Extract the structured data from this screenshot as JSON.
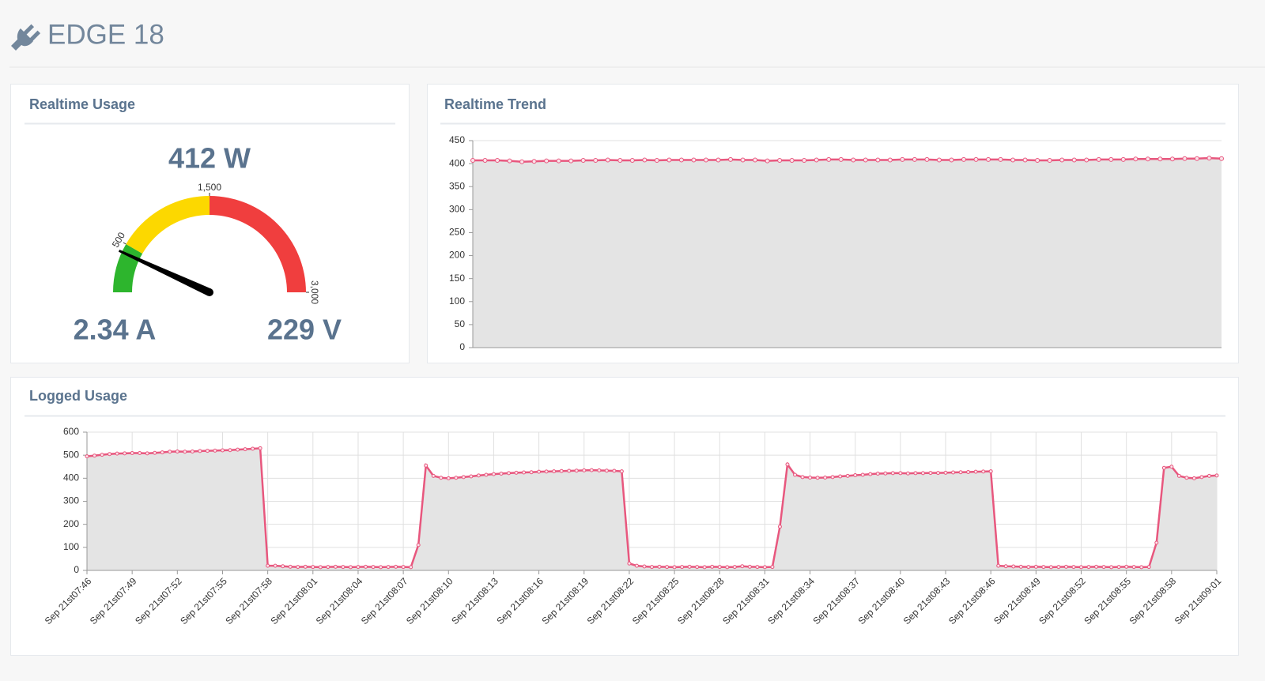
{
  "header": {
    "title": "EDGE 18"
  },
  "realtime_usage": {
    "title": "Realtime Usage",
    "gauge": {
      "type": "gauge",
      "value": 412,
      "value_label": "412 W",
      "range": [
        0,
        3000
      ],
      "ticks": [
        500,
        {
          "value": 1500,
          "label": "1,500"
        },
        {
          "value": 3000,
          "label": "3,000"
        }
      ],
      "bands": [
        {
          "to": 500,
          "color": "#2db52d"
        },
        {
          "to": 1500,
          "color": "#fcd800"
        },
        {
          "to": 3000,
          "color": "#f03e3e"
        }
      ]
    },
    "current": "2.34 A",
    "voltage": "229 V"
  },
  "realtime_trend": {
    "title": "Realtime Trend",
    "chart": {
      "type": "line",
      "color": "#e8577e",
      "fill": "#e4e4e4",
      "values": [
        407,
        407,
        407,
        406,
        404,
        405,
        406,
        406,
        406,
        407,
        407,
        408,
        407,
        407,
        408,
        407,
        408,
        408,
        408,
        408,
        408,
        409,
        408,
        408,
        406,
        407,
        407,
        407,
        408,
        409,
        409,
        408,
        408,
        408,
        408,
        409,
        409,
        409,
        408,
        408,
        409,
        409,
        409,
        409,
        408,
        408,
        407,
        407,
        408,
        408,
        408,
        409,
        409,
        409,
        410,
        410,
        410,
        410,
        411,
        411,
        412,
        411
      ],
      "ylim": [
        0,
        450
      ],
      "yticks": [
        0,
        50,
        100,
        150,
        200,
        250,
        300,
        350,
        400,
        450
      ],
      "grid": true
    }
  },
  "logged_usage": {
    "title": "Logged Usage",
    "chart": {
      "type": "line",
      "color": "#e8577e",
      "fill": "#e4e4e4",
      "x": [
        0,
        0.5,
        1,
        1.5,
        2,
        2.5,
        3,
        3.5,
        4,
        4.5,
        5,
        5.5,
        6,
        6.5,
        7,
        7.5,
        8,
        8.5,
        9,
        9.5,
        10,
        10.5,
        11,
        11.5,
        12,
        12.5,
        13,
        13.5,
        14,
        14.5,
        15,
        15.5,
        16,
        16.5,
        17,
        17.5,
        18,
        18.5,
        19,
        19.5,
        20,
        20.5,
        21,
        21.5,
        22,
        22.5,
        23,
        23.5,
        24,
        24.5,
        25,
        25.5,
        26,
        26.5,
        27,
        27.5,
        28,
        28.5,
        29,
        29.5,
        30,
        30.5,
        31,
        31.5,
        32,
        32.5,
        33,
        33.5,
        34,
        34.5,
        35,
        35.5,
        36,
        36.5,
        37,
        37.5,
        38,
        38.5,
        39,
        39.5,
        40,
        40.5,
        41,
        41.5,
        42,
        42.5,
        43,
        43.5,
        44,
        44.5,
        45,
        45.5,
        46,
        46.5,
        47,
        47.5,
        48,
        48.5,
        49,
        49.5,
        50,
        50.5,
        51,
        51.5,
        52,
        52.5,
        53,
        53.5,
        54,
        54.5,
        55,
        55.5,
        56,
        56.5,
        57,
        57.5,
        58,
        58.5,
        59,
        59.5,
        60,
        60.5,
        61,
        61.5,
        62,
        62.5,
        63,
        63.5,
        64,
        64.5,
        65,
        65.5,
        66,
        66.5,
        67,
        67.5,
        68,
        68.5,
        69,
        69.5,
        70,
        70.5,
        71,
        71.5,
        72,
        72.5,
        73,
        73.5,
        74,
        74.5,
        75
      ],
      "values": [
        495,
        498,
        502,
        505,
        507,
        508,
        509,
        509,
        508,
        510,
        512,
        515,
        516,
        515,
        516,
        518,
        519,
        520,
        521,
        522,
        524,
        526,
        528,
        530,
        20,
        20,
        18,
        16,
        15,
        16,
        15,
        14,
        15,
        16,
        15,
        14,
        15,
        16,
        15,
        14,
        15,
        16,
        15,
        14,
        110,
        455,
        410,
        402,
        400,
        402,
        405,
        408,
        412,
        415,
        418,
        420,
        422,
        424,
        425,
        426,
        428,
        429,
        430,
        431,
        432,
        433,
        434,
        435,
        434,
        433,
        432,
        430,
        30,
        20,
        17,
        15,
        16,
        15,
        14,
        15,
        16,
        15,
        14,
        16,
        15,
        14,
        15,
        18,
        16,
        15,
        14,
        15,
        190,
        460,
        415,
        405,
        403,
        402,
        403,
        405,
        408,
        410,
        413,
        415,
        418,
        420,
        421,
        422,
        422,
        421,
        422,
        422,
        423,
        423,
        424,
        425,
        426,
        427,
        428,
        429,
        430,
        20,
        18,
        17,
        16,
        15,
        16,
        15,
        14,
        15,
        16,
        15,
        14,
        15,
        16,
        15,
        14,
        15,
        16,
        15,
        14,
        15,
        120,
        445,
        450,
        410,
        402,
        400,
        405,
        410,
        412
      ],
      "xlim": [
        0,
        75
      ],
      "xticks": [
        {
          "value": 0,
          "label": "Sep 21st07:46"
        },
        {
          "value": 3,
          "label": "Sep 21st07:49"
        },
        {
          "value": 6,
          "label": "Sep 21st07:52"
        },
        {
          "value": 9,
          "label": "Sep 21st07:55"
        },
        {
          "value": 12,
          "label": "Sep 21st07:58"
        },
        {
          "value": 15,
          "label": "Sep 21st08:01"
        },
        {
          "value": 18,
          "label": "Sep 21st08:04"
        },
        {
          "value": 21,
          "label": "Sep 21st08:07"
        },
        {
          "value": 24,
          "label": "Sep 21st08:10"
        },
        {
          "value": 27,
          "label": "Sep 21st08:13"
        },
        {
          "value": 30,
          "label": "Sep 21st08:16"
        },
        {
          "value": 33,
          "label": "Sep 21st08:19"
        },
        {
          "value": 36,
          "label": "Sep 21st08:22"
        },
        {
          "value": 39,
          "label": "Sep 21st08:25"
        },
        {
          "value": 42,
          "label": "Sep 21st08:28"
        },
        {
          "value": 45,
          "label": "Sep 21st08:31"
        },
        {
          "value": 48,
          "label": "Sep 21st08:34"
        },
        {
          "value": 51,
          "label": "Sep 21st08:37"
        },
        {
          "value": 54,
          "label": "Sep 21st08:40"
        },
        {
          "value": 57,
          "label": "Sep 21st08:43"
        },
        {
          "value": 60,
          "label": "Sep 21st08:46"
        },
        {
          "value": 63,
          "label": "Sep 21st08:49"
        },
        {
          "value": 66,
          "label": "Sep 21st08:52"
        },
        {
          "value": 69,
          "label": "Sep 21st08:55"
        },
        {
          "value": 72,
          "label": "Sep 21st08:58"
        },
        {
          "value": 75,
          "label": "Sep 21st09:01"
        }
      ],
      "ylim": [
        0,
        600
      ],
      "yticks": [
        0,
        100,
        200,
        300,
        400,
        500,
        600
      ],
      "grid": true
    }
  }
}
